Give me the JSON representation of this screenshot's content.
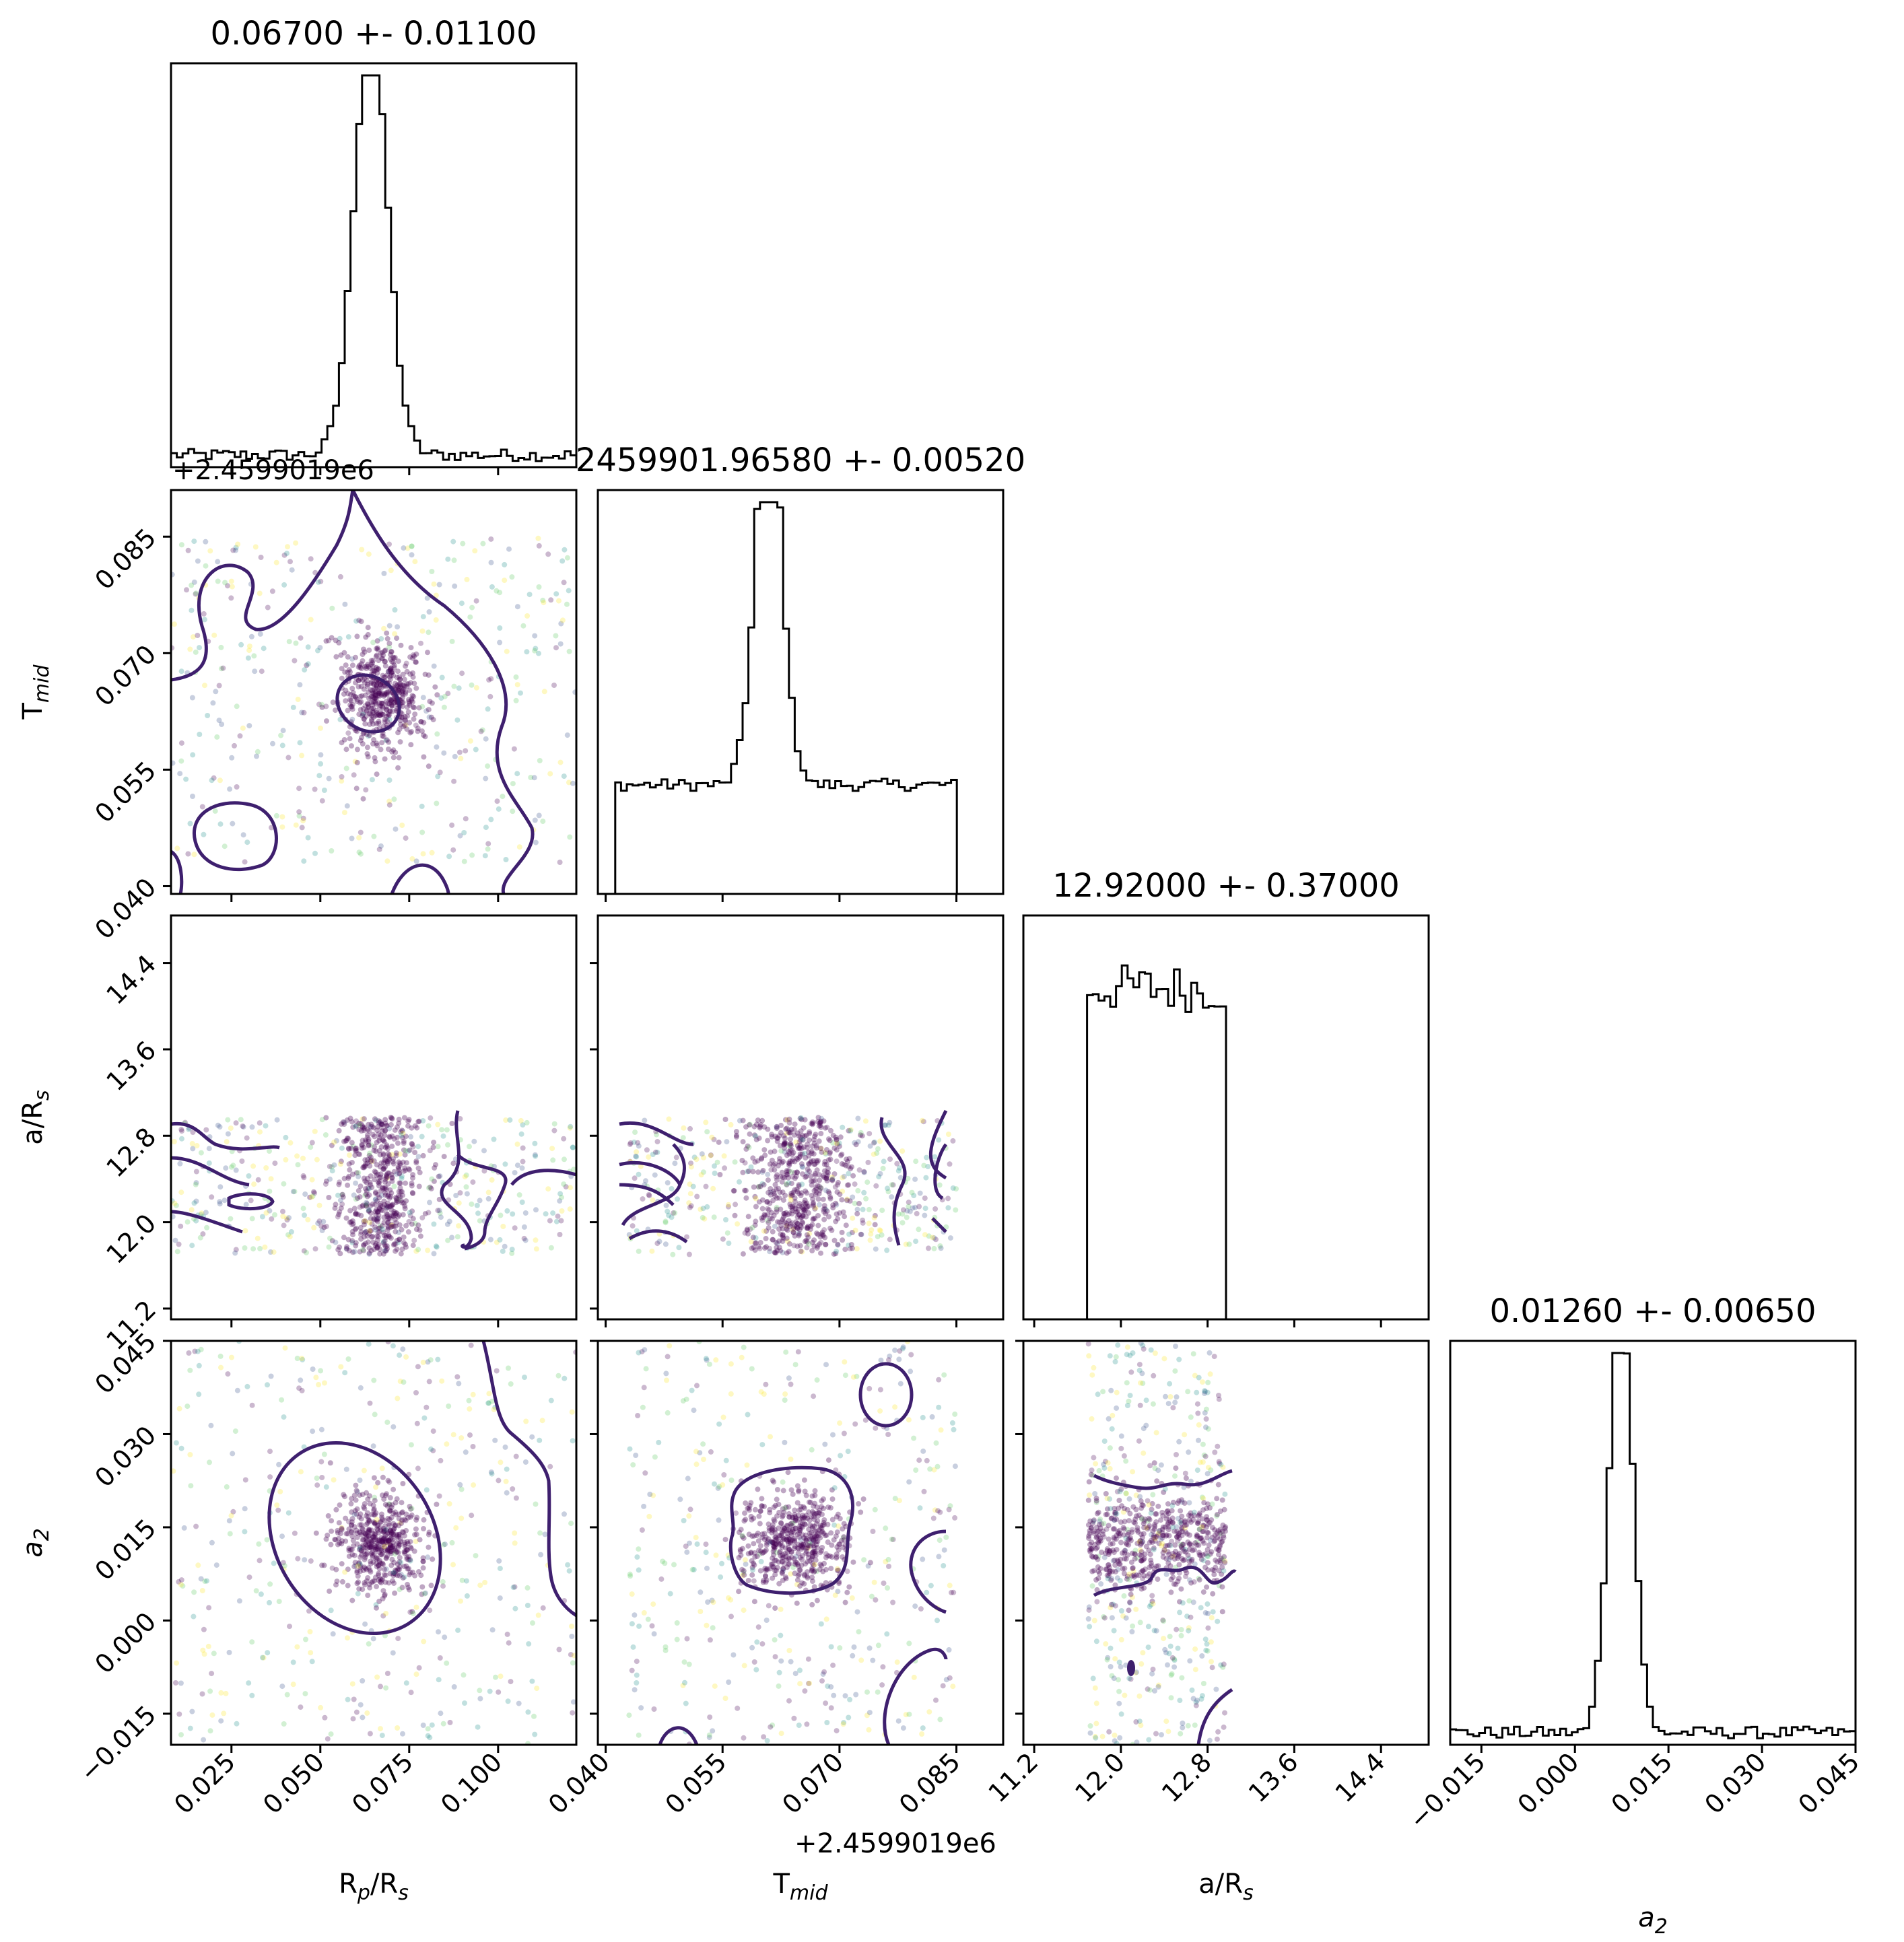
{
  "chart_data": {
    "type": "corner",
    "parameters": [
      {
        "key": "rp",
        "label_main": "R",
        "label_sub": "p",
        "label_tail": "/R",
        "label_sub2": "s",
        "range": [
          0.008,
          0.122
        ],
        "ticks": [
          "0.025",
          "0.050",
          "0.075",
          "0.100"
        ],
        "tick_values": [
          0.025,
          0.05,
          0.075,
          0.1
        ]
      },
      {
        "key": "tmid",
        "label_main": "T",
        "label_sub": "mid",
        "label_tail": "",
        "label_sub2": "",
        "range": [
          0.039,
          0.091
        ],
        "ticks": [
          "0.040",
          "0.055",
          "0.070",
          "0.085"
        ],
        "tick_values": [
          0.04,
          0.055,
          0.07,
          0.085
        ],
        "offset": "+2.4599019e6"
      },
      {
        "key": "ars",
        "label_main": "a/R",
        "label_sub": "s",
        "label_tail": "",
        "label_sub2": "",
        "range": [
          11.1,
          14.84
        ],
        "ticks": [
          "11.2",
          "12.0",
          "12.8",
          "13.6",
          "14.4"
        ],
        "tick_values": [
          11.2,
          12.0,
          12.8,
          13.6,
          14.4
        ]
      },
      {
        "key": "a2",
        "label_main": "a",
        "label_sub": "2",
        "label_tail": "",
        "label_sub2": "",
        "range": [
          -0.02,
          0.045
        ],
        "ticks": [
          "−0.015",
          "0.000",
          "0.015",
          "0.030",
          "0.045"
        ],
        "tick_values": [
          -0.015,
          0.0,
          0.015,
          0.03,
          0.045
        ]
      }
    ],
    "titles": [
      "0.06700 +- 0.01100",
      "2459901.96580 +- 0.00520",
      "12.92000 +- 0.37000",
      "0.01260 +- 0.00650"
    ],
    "summary": [
      {
        "median": 0.067,
        "sigma": 0.011
      },
      {
        "median": 2459901.9658,
        "sigma": 0.0052
      },
      {
        "median": 12.92,
        "sigma": 0.37
      },
      {
        "median": 0.0126,
        "sigma": 0.0065
      }
    ],
    "histograms": [
      {
        "bins": 70,
        "peak_index": 34,
        "core_width": 3,
        "base": 0.03,
        "tail_slope": 0.0025,
        "heights_note": "sharp peak near 0.067"
      },
      {
        "bins": 70,
        "peak_index": 29,
        "core_width": 2,
        "base": 0.27,
        "tail_slope": 0.0015
      },
      {
        "bins": 70,
        "flat_from": 11.7,
        "flat_to": 12.95,
        "level": 0.82
      },
      {
        "bins": 70,
        "peak_index": 29,
        "core_width": 2,
        "base": 0.03,
        "tail_slope": 0.002
      }
    ],
    "scatter_colors": [
      "#440154",
      "#3b528b",
      "#21918c",
      "#5ec962",
      "#fde725"
    ],
    "contour_color": "#3e1f6e",
    "grid": false
  }
}
